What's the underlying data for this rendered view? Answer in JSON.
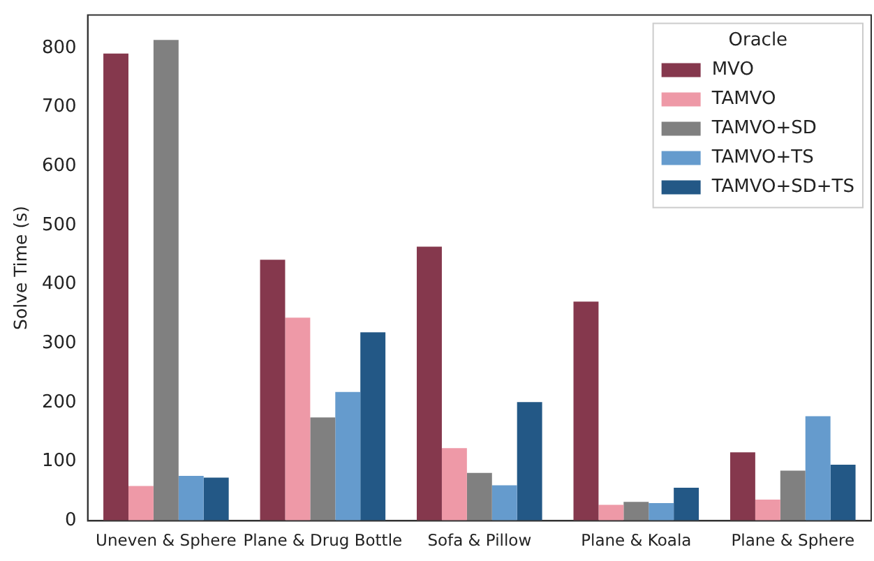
{
  "chart_data": {
    "type": "bar",
    "ylabel": "Solve Time (s)",
    "legend_title": "Oracle",
    "legend": "top right",
    "grid": false,
    "categories": [
      "Uneven & Sphere",
      "Plane & Drug Bottle",
      "Sofa & Pillow",
      "Plane & Koala",
      "Plane & Sphere"
    ],
    "series": [
      {
        "name": "MVO",
        "color": "#85384d",
        "values": [
          791,
          442,
          464,
          371,
          116
        ]
      },
      {
        "name": "TAMVO",
        "color": "#ee99a7",
        "values": [
          59,
          344,
          123,
          27,
          36
        ]
      },
      {
        "name": "TAMVO+SD",
        "color": "#808080",
        "values": [
          814,
          175,
          81,
          32,
          85
        ]
      },
      {
        "name": "TAMVO+TS",
        "color": "#659bcd",
        "values": [
          76,
          218,
          60,
          30,
          177
        ]
      },
      {
        "name": "TAMVO+SD+TS",
        "color": "#235886",
        "values": [
          73,
          319,
          201,
          56,
          95
        ]
      }
    ],
    "ylim": [
      0,
      856
    ],
    "yticks": [
      0,
      100,
      200,
      300,
      400,
      500,
      600,
      700,
      800
    ]
  }
}
